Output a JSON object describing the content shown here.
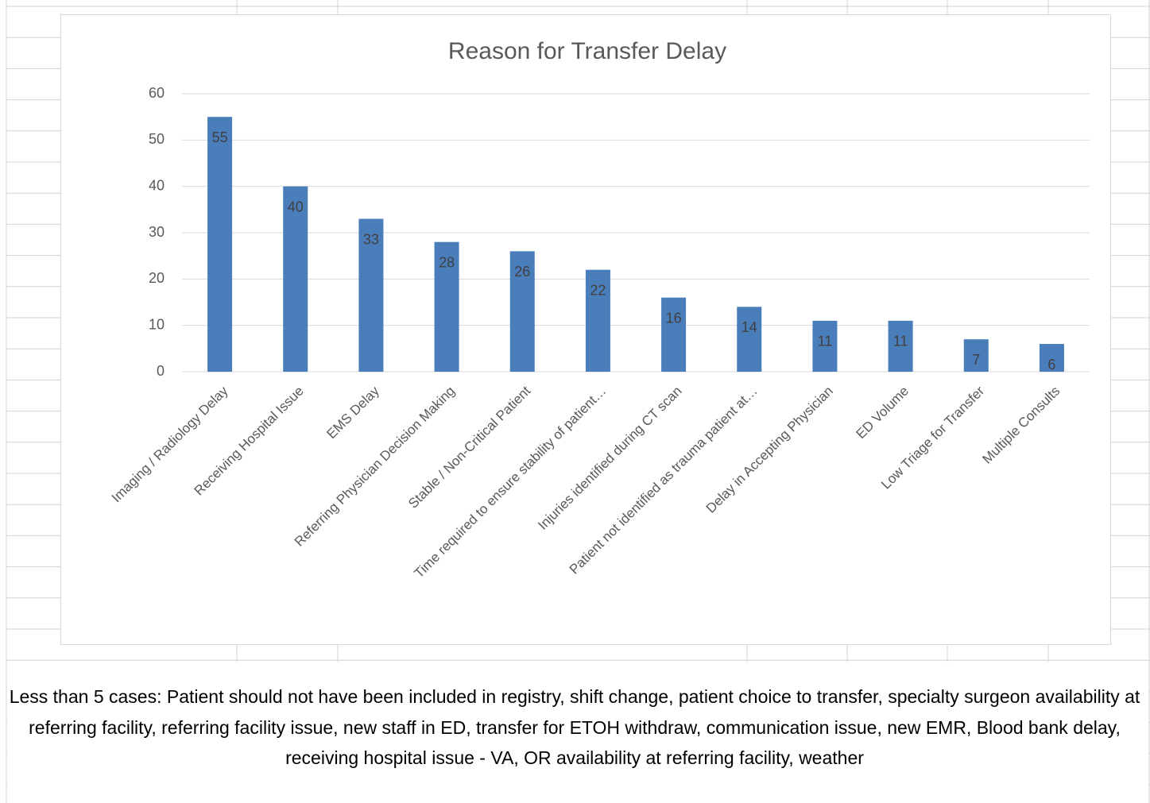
{
  "chart_data": {
    "type": "bar",
    "title": "Reason for Transfer Delay",
    "categories": [
      "Imaging / Radiology Delay",
      "Receiving Hospital Issue",
      "EMS Delay",
      "Referring Physician Decision Making",
      "Stable / Non-Critical Patient",
      "Time required to ensure stability of patient…",
      "Injuries identified during CT scan",
      "Patient not identified as trauma patient at…",
      "Delay in Accepting Physician",
      "ED Volume",
      "Low Triage for Transfer",
      "Multiple Consults"
    ],
    "values": [
      55,
      40,
      33,
      28,
      26,
      22,
      16,
      14,
      11,
      11,
      7,
      6
    ],
    "color": "#4a7ebb",
    "ylim": [
      0,
      60
    ],
    "yticks": [
      0,
      10,
      20,
      30,
      40,
      50,
      60
    ],
    "grid": true,
    "annotation": "Less than 5 cases: Patient should not have been included in registry, shift change, patient choice to transfer, specialty surgeon availability at referring facility, referring facility issue, new staff in ED, transfer for ETOH withdraw, communication issue, new EMR, Blood bank delay, receiving hospital issue - VA, OR availability at referring facility, weather"
  }
}
